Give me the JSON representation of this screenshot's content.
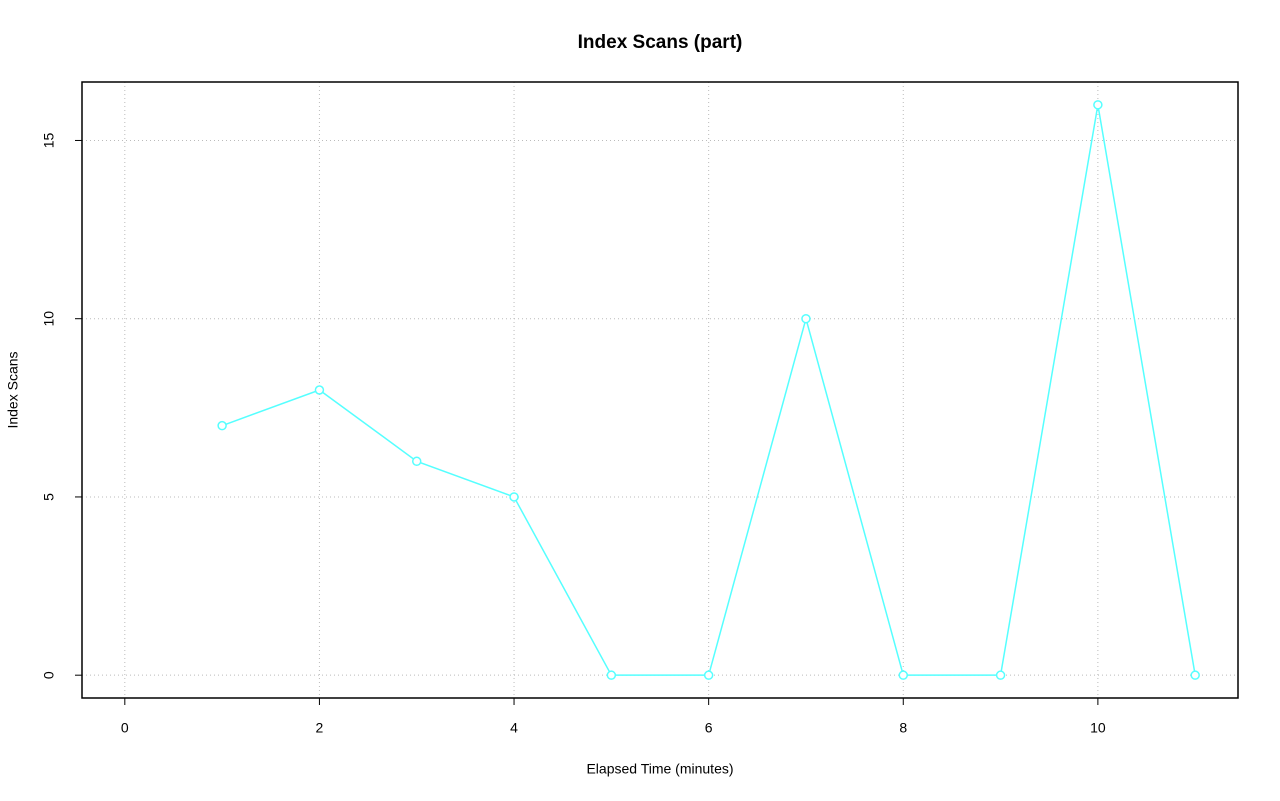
{
  "chart_data": {
    "type": "line",
    "title": "Index Scans (part)",
    "x_label": "Elapsed Time (minutes)",
    "y_label": "Index Scans",
    "x": [
      1,
      2,
      3,
      4,
      5,
      6,
      7,
      8,
      9,
      10,
      11
    ],
    "series": [
      {
        "name": "Index Scans",
        "color": "#55ffff",
        "values": [
          7,
          8,
          6,
          5,
          0,
          0,
          10,
          0,
          0,
          16,
          0
        ]
      }
    ],
    "xlim": [
      -0.44,
      11.44
    ],
    "ylim": [
      -0.64,
      16.64
    ],
    "xticks": [
      0,
      2,
      4,
      6,
      8,
      10
    ],
    "yticks": [
      0,
      5,
      10,
      15
    ],
    "grid": true,
    "markers": true
  }
}
